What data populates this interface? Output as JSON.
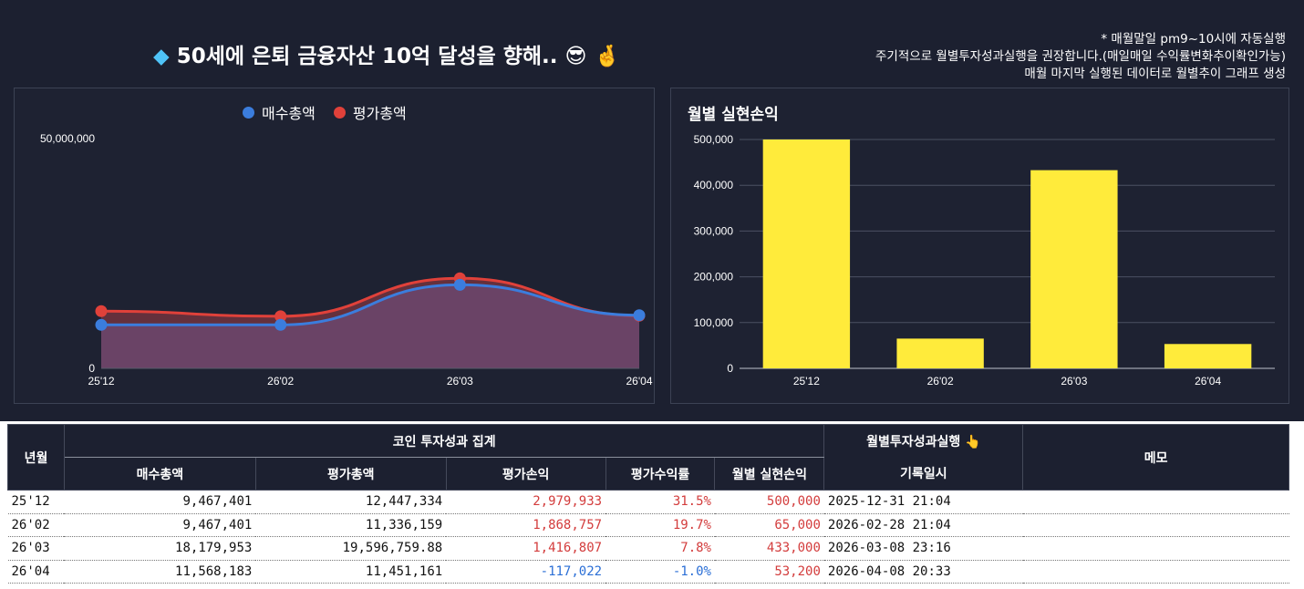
{
  "title": "50세에 은퇴 금융자산 10억 달성을 향해..",
  "title_icons": [
    "gem-icon",
    "sunglasses-emoji-icon",
    "crossed-fingers-icon"
  ],
  "notes": [
    "* 매월말일 pm9~10시에 자동실행",
    "주기적으로 월별투자성과실행을 권장합니다.(매일매일 수익률변화추이확인가능)",
    "매월 마지막 실행된 데이터로 월별추이 그래프 생성"
  ],
  "colors": {
    "background": "#1c2030",
    "buy_series": "#3b7ddd",
    "eval_series": "#e0413a",
    "bar": "#ffeb3b",
    "positive": "#d33c3c",
    "negative": "#2b6fd6"
  },
  "chart_data": [
    {
      "type": "area",
      "legend_position": "top",
      "x": [
        "25'12",
        "26'02",
        "26'03",
        "26'04"
      ],
      "ylim": [
        0,
        50000000
      ],
      "y_ticks": [
        "0",
        "50,000,000"
      ],
      "series": [
        {
          "name": "매수총액",
          "values": [
            9467401,
            9467401,
            18179953,
            11568183
          ]
        },
        {
          "name": "평가총액",
          "values": [
            12447334,
            11336159,
            19596759.88,
            11451161
          ]
        }
      ]
    },
    {
      "type": "bar",
      "title": "월별 실현손익",
      "categories": [
        "25'12",
        "26'02",
        "26'03",
        "26'04"
      ],
      "values": [
        500000,
        65000,
        433000,
        53200
      ],
      "ylim": [
        0,
        500000
      ],
      "y_ticks": [
        "0",
        "100,000",
        "200,000",
        "300,000",
        "400,000",
        "500,000"
      ],
      "grid": true
    }
  ],
  "table": {
    "headers": {
      "year_month": "년월",
      "group": "코인 투자성과 집계",
      "buy_total": "매수총액",
      "eval_total": "평가총액",
      "eval_pnl": "평가손익",
      "eval_rate": "평가수익률",
      "realized": "월별 실현손익",
      "run_button": "월별투자성과실행",
      "recorded_at": "기록일시",
      "memo": "메모"
    },
    "rows": [
      {
        "ym": "25'12",
        "buy": "9,467,401",
        "eval": "12,447,334",
        "pnl": "2,979,933",
        "rate": "31.5%",
        "realized": "500,000",
        "date": "2025-12-31 21:04",
        "memo": ""
      },
      {
        "ym": "26'02",
        "buy": "9,467,401",
        "eval": "11,336,159",
        "pnl": "1,868,757",
        "rate": "19.7%",
        "realized": "65,000",
        "date": "2026-02-28 21:04",
        "memo": ""
      },
      {
        "ym": "26'03",
        "buy": "18,179,953",
        "eval": "19,596,759.88",
        "pnl": "1,416,807",
        "rate": "7.8%",
        "realized": "433,000",
        "date": "2026-03-08 23:16",
        "memo": ""
      },
      {
        "ym": "26'04",
        "buy": "11,568,183",
        "eval": "11,451,161",
        "pnl": "-117,022",
        "rate": "-1.0%",
        "realized": "53,200",
        "date": "2026-04-08 20:33",
        "memo": ""
      }
    ]
  }
}
